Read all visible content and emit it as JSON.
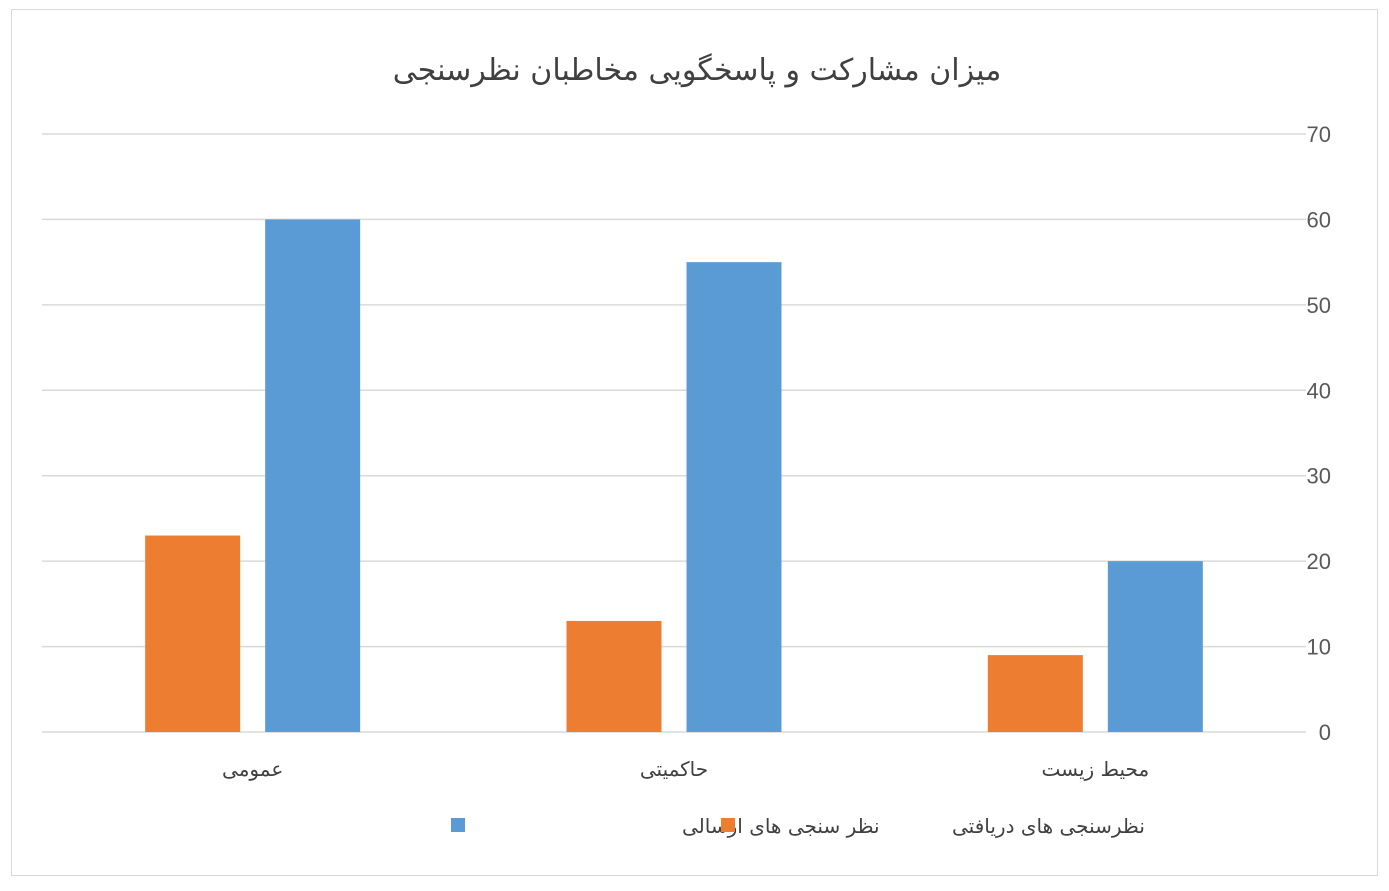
{
  "chart_data": {
    "type": "bar",
    "title": "میزان مشارکت و پاسخگویی مخاطبان نظرسنجی",
    "categories": [
      "محیط زیست",
      "حاکمیتی",
      "عمومی"
    ],
    "series": [
      {
        "name": "نظرسنجی های دریافتی",
        "color": "#ED7D31",
        "values": [
          9,
          13,
          23
        ]
      },
      {
        "name": "نظر سنجی های ارسالی",
        "color": "#5B9BD5",
        "values": [
          20,
          55,
          60
        ]
      }
    ],
    "ylim": [
      0,
      70
    ],
    "yticks": [
      0,
      10,
      20,
      30,
      40,
      50,
      60,
      70
    ],
    "yaxis_side": "right",
    "grid": true,
    "legend_position": "bottom"
  }
}
